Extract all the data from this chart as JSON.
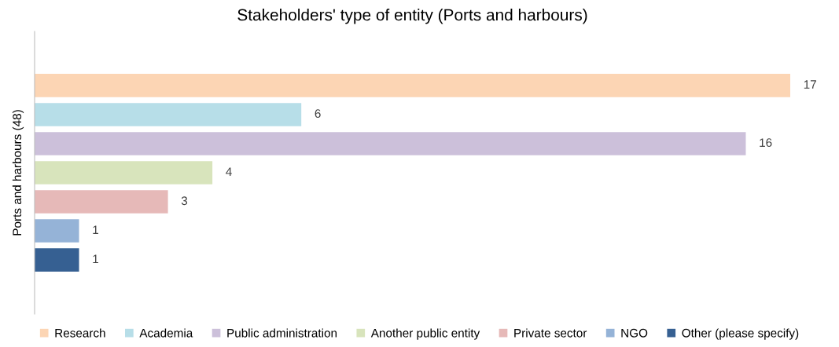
{
  "chart_data": {
    "type": "bar",
    "orientation": "horizontal",
    "title": "Stakeholders' type of entity (Ports and harbours)",
    "ylabel": "Ports and harbours (48)",
    "categories": [
      null
    ],
    "series": [
      {
        "name": "Research",
        "color": "#fcd5b4",
        "values": [
          17
        ]
      },
      {
        "name": "Academia",
        "color": "#b7dee8",
        "values": [
          6
        ]
      },
      {
        "name": "Public administration",
        "color": "#ccc0da",
        "values": [
          16
        ]
      },
      {
        "name": "Another public entity",
        "color": "#d8e4bc",
        "values": [
          4
        ]
      },
      {
        "name": "Private sector",
        "color": "#e6b9b8",
        "values": [
          3
        ]
      },
      {
        "name": "NGO",
        "color": "#95b3d7",
        "values": [
          1
        ]
      },
      {
        "name": "Other (please specify)",
        "color": "#366092",
        "values": [
          1
        ]
      }
    ],
    "xlim": [
      0,
      17
    ],
    "data_labels": true,
    "legend": "bottom",
    "grid": false,
    "tick_labels": false
  }
}
